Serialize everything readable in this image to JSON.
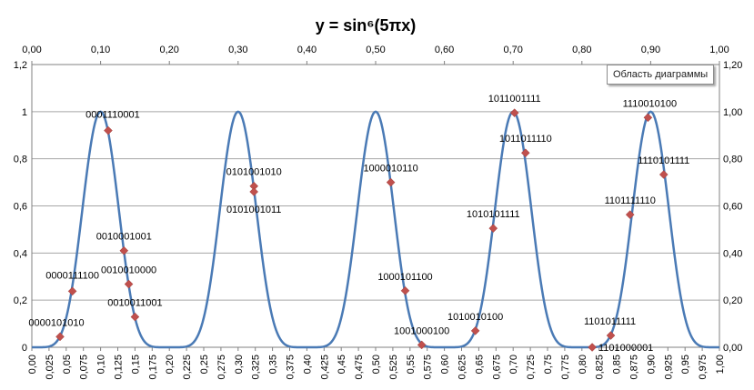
{
  "chart_data": {
    "type": "scatter",
    "title": "y = sin⁶(5πx)",
    "curve": {
      "function": "sin^6(5*pi*x)",
      "x_range": [
        0,
        1
      ],
      "color": "#4a7ab5"
    },
    "marker_color": "#c0504d",
    "points": [
      {
        "label": "0000101010",
        "x": 0.041,
        "y": 0.045
      },
      {
        "label": "0000111100",
        "x": 0.059,
        "y": 0.238
      },
      {
        "label": "0001110001",
        "x": 0.111,
        "y": 0.92
      },
      {
        "label": "0010001001",
        "x": 0.134,
        "y": 0.41
      },
      {
        "label": "0010010000",
        "x": 0.141,
        "y": 0.268
      },
      {
        "label": "0010011001",
        "x": 0.15,
        "y": 0.129
      },
      {
        "label": "0101001010",
        "x": 0.323,
        "y": 0.684
      },
      {
        "label": "0101001011",
        "x": 0.323,
        "y": 0.66
      },
      {
        "label": "1000010110",
        "x": 0.522,
        "y": 0.7
      },
      {
        "label": "1000101100",
        "x": 0.543,
        "y": 0.24
      },
      {
        "label": "1001000100",
        "x": 0.567,
        "y": 0.01
      },
      {
        "label": "1010010100",
        "x": 0.645,
        "y": 0.07
      },
      {
        "label": "1010101111",
        "x": 0.671,
        "y": 0.505
      },
      {
        "label": "1011001111",
        "x": 0.702,
        "y": 0.995
      },
      {
        "label": "1011011110",
        "x": 0.718,
        "y": 0.825
      },
      {
        "label": "1101000001",
        "x": 0.815,
        "y": 0.0
      },
      {
        "label": "1101011111",
        "x": 0.842,
        "y": 0.05
      },
      {
        "label": "1101111110",
        "x": 0.87,
        "y": 0.563
      },
      {
        "label": "1110010100",
        "x": 0.896,
        "y": 0.975
      },
      {
        "label": "1110101111",
        "x": 0.919,
        "y": 0.733
      }
    ],
    "x_bottom": {
      "range": [
        0,
        1
      ],
      "step": 0.025,
      "tick_labels": [
        "0,00",
        "0,025",
        "0,05",
        "0,075",
        "0,10",
        "0,125",
        "0,15",
        "0,175",
        "0,20",
        "0,225",
        "0,25",
        "0,275",
        "0,30",
        "0,325",
        "0,35",
        "0,375",
        "0,40",
        "0,425",
        "0,45",
        "0,475",
        "0,50",
        "0,525",
        "0,55",
        "0,575",
        "0,60",
        "0,625",
        "0,65",
        "0,675",
        "0,70",
        "0,725",
        "0,75",
        "0,775",
        "0,80",
        "0,825",
        "0,85",
        "0,875",
        "0,90",
        "0,925",
        "0,95",
        "0,975",
        "1,00"
      ]
    },
    "x_top": {
      "range": [
        0,
        1
      ],
      "step": 0.1,
      "tick_labels": [
        "0,00",
        "0,10",
        "0,20",
        "0,30",
        "0,40",
        "0,50",
        "0,60",
        "0,70",
        "0,80",
        "0,90",
        "1,00"
      ]
    },
    "y_left": {
      "range": [
        0,
        1.2
      ],
      "step": 0.2,
      "tick_labels": [
        "0",
        "0,2",
        "0,4",
        "0,6",
        "0,8",
        "1",
        "1,2"
      ]
    },
    "y_right": {
      "range": [
        0,
        1.2
      ],
      "step": 0.2,
      "tick_labels": [
        "0,00",
        "0,20",
        "0,40",
        "0,60",
        "0,80",
        "1,00",
        "1,20"
      ]
    },
    "grid": {
      "horizontal": true,
      "vertical": false
    },
    "legend": "none"
  },
  "tooltip": {
    "text": "Область диаграммы"
  }
}
